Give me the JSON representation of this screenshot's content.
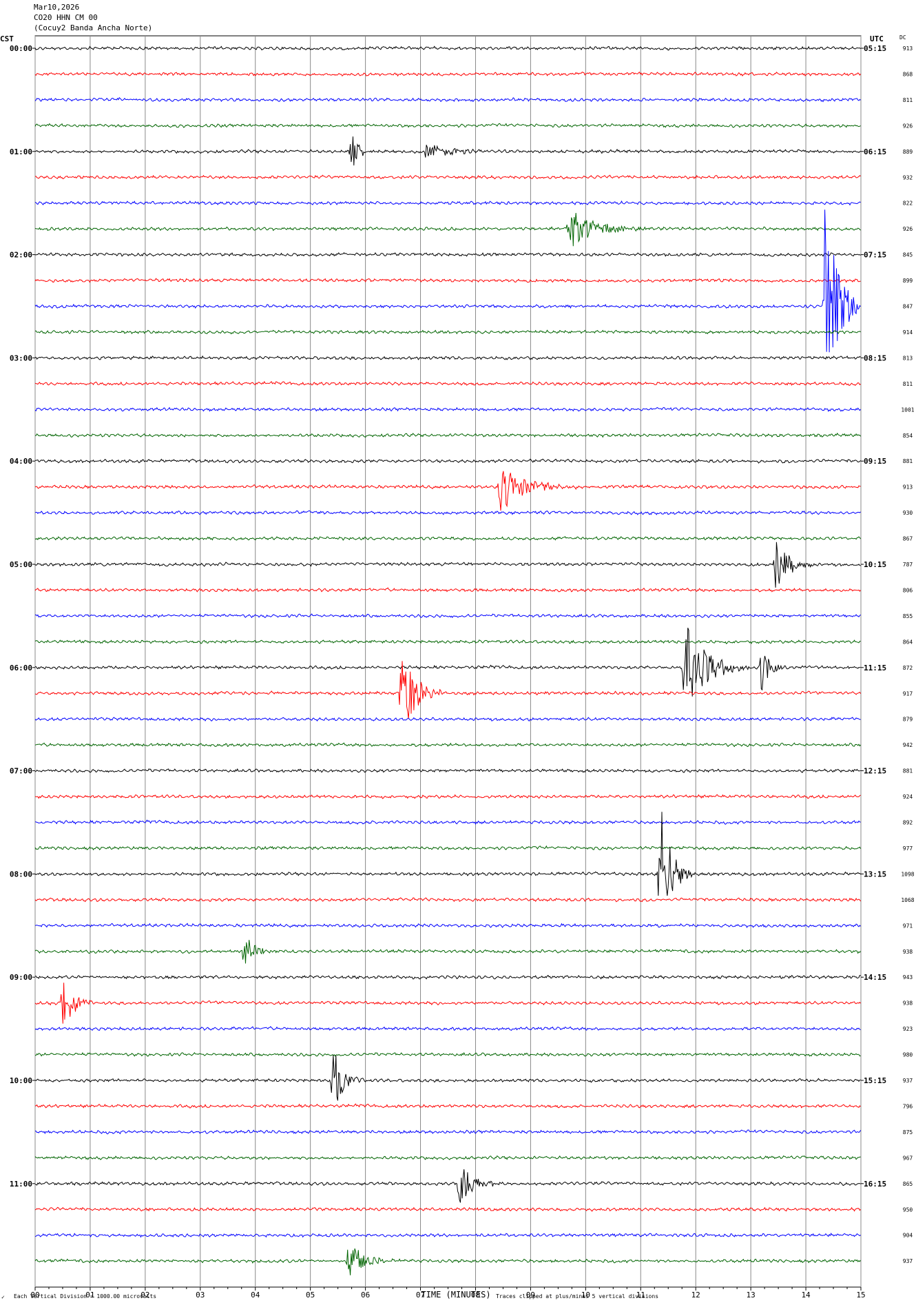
{
  "header": {
    "date": "Mar10,2026",
    "station": "CO20 HHN CM 00",
    "location": "(Cocuy2 Banda Ancha Norte)"
  },
  "footer": {
    "scale_note": "Each Vertical Division = 1000.00 microvolts",
    "clip_note": "Traces clipped at plus/minus 5 vertical divisions",
    "corner_mark": "✓"
  },
  "chart_data": {
    "type": "line",
    "subtype": "helicorder",
    "xlabel": "TIME (MINUTES)",
    "left_axis_label": "CST",
    "right_axis_label": "UTC",
    "dc_label": "DC",
    "x_ticks": [
      "00",
      "01",
      "02",
      "03",
      "04",
      "05",
      "06",
      "07",
      "08",
      "09",
      "10",
      "11",
      "12",
      "13",
      "14",
      "15"
    ],
    "xlim": [
      0,
      15
    ],
    "row_minutes": 15,
    "grid": true,
    "trace_colors": [
      "#000000",
      "#ff0000",
      "#0000ff",
      "#006400"
    ],
    "left_times": [
      "00:00",
      "",
      "",
      "",
      "01:00",
      "",
      "",
      "",
      "02:00",
      "",
      "",
      "",
      "03:00",
      "",
      "",
      "",
      "04:00",
      "",
      "",
      "",
      "05:00",
      "",
      "",
      "",
      "06:00",
      "",
      "",
      "",
      "07:00",
      "",
      "",
      "",
      "08:00",
      "",
      "",
      "",
      "09:00",
      "",
      "",
      "",
      "10:00",
      "",
      "",
      "",
      "11:00",
      "",
      "",
      ""
    ],
    "right_times": [
      "05:15",
      "",
      "",
      "",
      "06:15",
      "",
      "",
      "",
      "07:15",
      "",
      "",
      "",
      "08:15",
      "",
      "",
      "",
      "09:15",
      "",
      "",
      "",
      "10:15",
      "",
      "",
      "",
      "11:15",
      "",
      "",
      "",
      "12:15",
      "",
      "",
      "",
      "13:15",
      "",
      "",
      "",
      "14:15",
      "",
      "",
      "",
      "15:15",
      "",
      "",
      "",
      "16:15",
      "",
      "",
      ""
    ],
    "dc_values": [
      "913",
      "868",
      "811",
      "926",
      "889",
      "932",
      "822",
      "926",
      "845",
      "899",
      "847",
      "914",
      "813",
      "811",
      "1001",
      "854",
      "881",
      "913",
      "930",
      "867",
      "787",
      "806",
      "855",
      "864",
      "872",
      "917",
      "879",
      "942",
      "881",
      "924",
      "892",
      "977",
      "1098",
      "1068",
      "971",
      "938",
      "943",
      "938",
      "923",
      "980",
      "937",
      "796",
      "875",
      "967",
      "865",
      "950",
      "904",
      "937"
    ],
    "events": [
      {
        "row": 4,
        "minute": 5.75,
        "amplitude": 2.0,
        "duration_min": 0.35
      },
      {
        "row": 4,
        "minute": 7.1,
        "amplitude": 0.6,
        "duration_min": 1.5
      },
      {
        "row": 7,
        "minute": 9.7,
        "amplitude": 1.5,
        "duration_min": 1.5
      },
      {
        "row": 10,
        "minute": 14.35,
        "amplitude": 9.0,
        "duration_min": 0.7
      },
      {
        "row": 17,
        "minute": 8.45,
        "amplitude": 1.8,
        "duration_min": 1.4
      },
      {
        "row": 20,
        "minute": 13.45,
        "amplitude": 2.0,
        "duration_min": 0.7
      },
      {
        "row": 24,
        "minute": 11.8,
        "amplitude": 3.5,
        "duration_min": 1.2
      },
      {
        "row": 24,
        "minute": 13.2,
        "amplitude": 2.0,
        "duration_min": 0.4
      },
      {
        "row": 25,
        "minute": 6.65,
        "amplitude": 3.5,
        "duration_min": 0.8
      },
      {
        "row": 32,
        "minute": 11.35,
        "amplitude": 5.5,
        "duration_min": 0.6
      },
      {
        "row": 35,
        "minute": 3.8,
        "amplitude": 1.3,
        "duration_min": 0.6
      },
      {
        "row": 37,
        "minute": 0.5,
        "amplitude": 2.3,
        "duration_min": 0.6
      },
      {
        "row": 40,
        "minute": 5.4,
        "amplitude": 2.5,
        "duration_min": 0.6
      },
      {
        "row": 44,
        "minute": 7.7,
        "amplitude": 1.8,
        "duration_min": 0.8
      },
      {
        "row": 47,
        "minute": 5.7,
        "amplitude": 1.8,
        "duration_min": 0.8
      }
    ]
  }
}
